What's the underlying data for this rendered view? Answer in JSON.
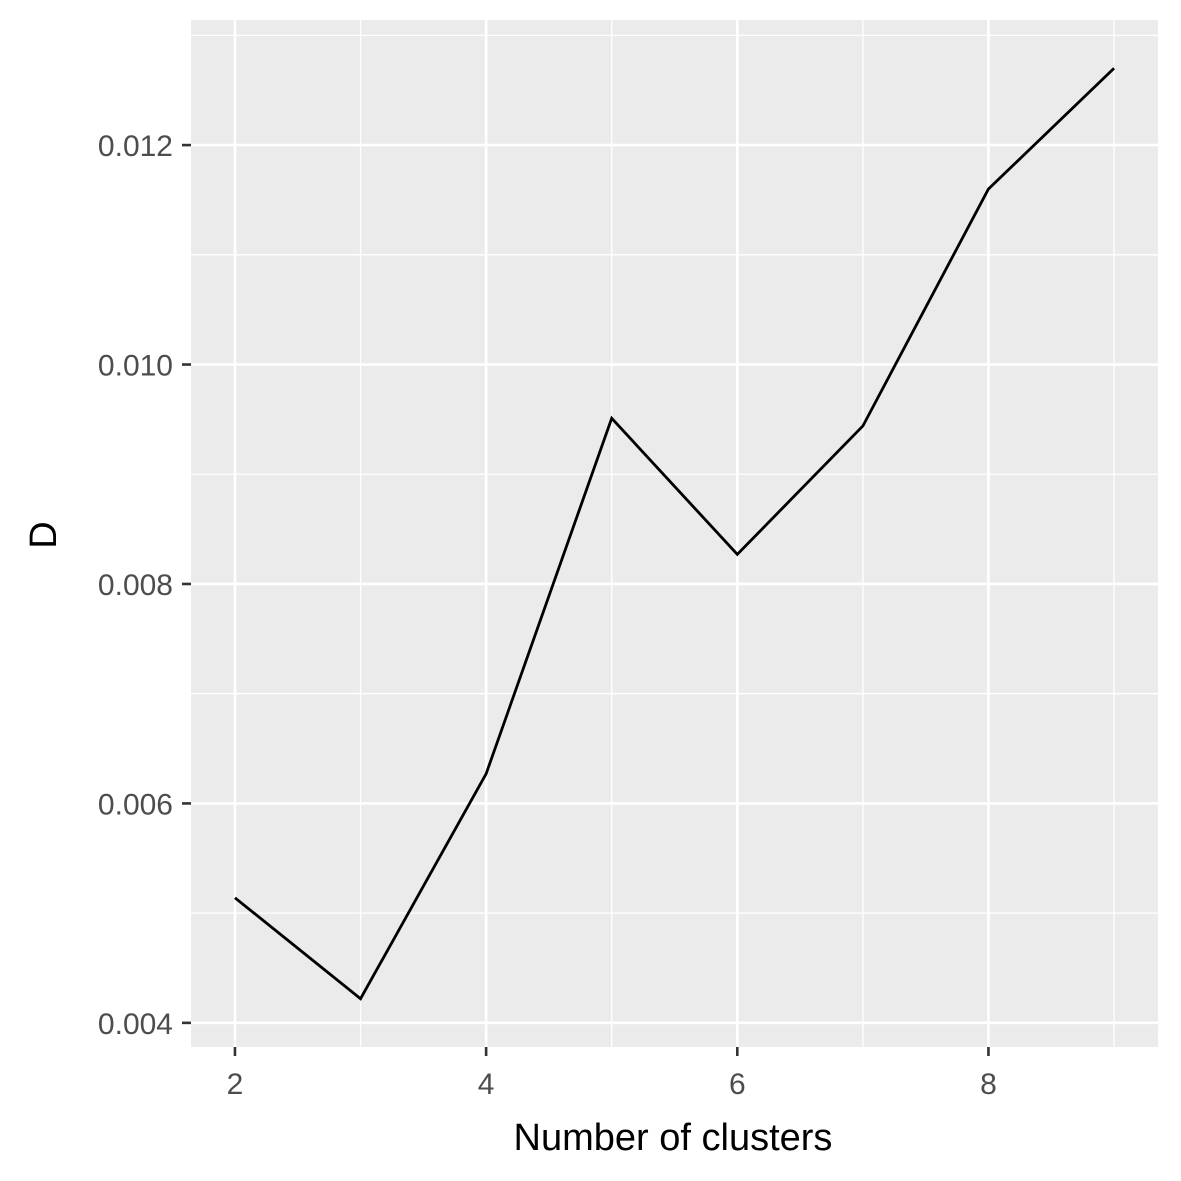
{
  "chart_data": {
    "type": "line",
    "title": "",
    "xlabel": "Number of clusters",
    "ylabel": "D",
    "x": [
      2,
      3,
      4,
      5,
      6,
      7,
      8,
      9
    ],
    "series": [
      {
        "values": [
          0.00514,
          0.00422,
          0.00627,
          0.00951,
          0.00827,
          0.00944,
          0.0116,
          0.0127
        ]
      }
    ],
    "xlim": [
      1.65,
      9.35
    ],
    "ylim": [
      0.00378,
      0.01314
    ],
    "x_ticks": [
      2,
      4,
      6,
      8
    ],
    "x_tick_labels": [
      "2",
      "4",
      "6",
      "8"
    ],
    "x_minor_ticks": [
      3,
      5,
      7,
      9
    ],
    "y_ticks": [
      0.004,
      0.006,
      0.008,
      0.01,
      0.012
    ],
    "y_tick_labels": [
      "0.004",
      "0.006",
      "0.008",
      "0.010",
      "0.012"
    ],
    "y_minor_ticks": [
      0.005,
      0.007,
      0.009,
      0.011,
      0.013
    ],
    "grid": true,
    "legend": "none",
    "colors": {
      "panel": "#ebebeb",
      "grid": "#ffffff",
      "line": "#000000",
      "tick": "#333333",
      "tick_label": "#4d4d4d"
    }
  }
}
